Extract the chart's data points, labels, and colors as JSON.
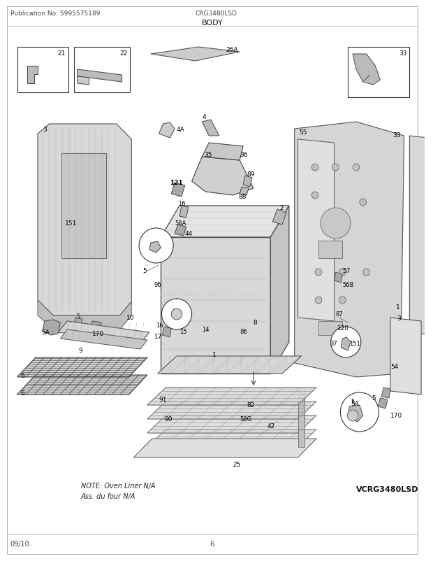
{
  "title": "BODY",
  "header_left": "Publication No: 5995575189",
  "header_center": "CRG3480LSD",
  "footer_left": "09/10",
  "footer_center": "6",
  "bg_color": "#ffffff",
  "watermark": "eReplacementParts.com",
  "model_label": "VCRG3480LSD",
  "note_line1": "NOTE: Oven Liner N/A",
  "note_line2": "Ass. du four N/A",
  "figsize": [
    6.2,
    8.03
  ],
  "dpi": 100
}
